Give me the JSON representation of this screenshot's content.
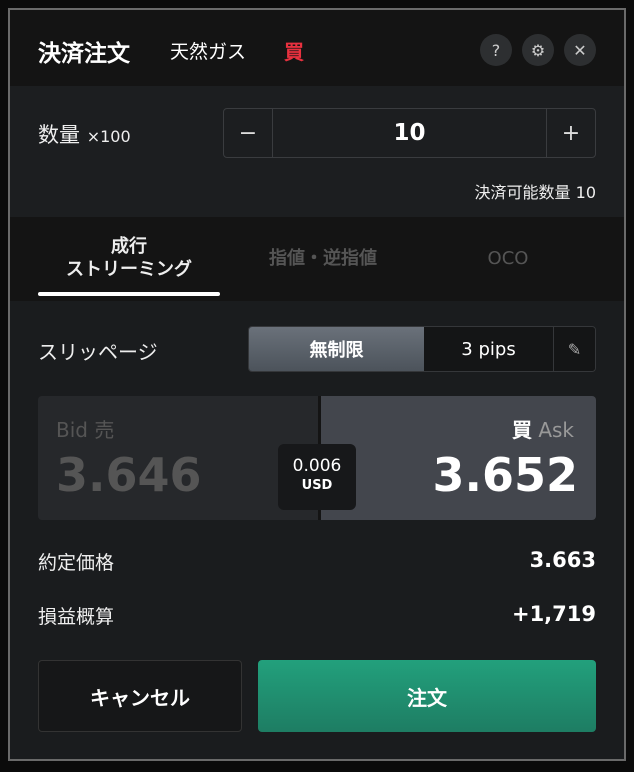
{
  "header": {
    "title": "決済注文",
    "instrument": "天然ガス",
    "side": "買",
    "side_color": "#e8313f",
    "icons": [
      "help-icon",
      "gear-icon",
      "close-icon"
    ]
  },
  "quantity": {
    "label": "数量",
    "unit": "×100",
    "value": "10",
    "minus": "−",
    "plus": "+",
    "available": "決済可能数量 10"
  },
  "tabs": [
    {
      "label_line1": "成行",
      "label_line2": "ストリーミング",
      "active": true
    },
    {
      "label": "指値・逆指値",
      "active": false
    },
    {
      "label": "OCO",
      "active": false
    }
  ],
  "slippage": {
    "label": "スリッページ",
    "options": [
      "無制限",
      "3 pips"
    ],
    "selected": "無制限"
  },
  "quote": {
    "bid_label": "Bid",
    "bid_side": "売",
    "bid": "3.646",
    "ask_side": "買",
    "ask_label": "Ask",
    "ask": "3.652",
    "spread": "0.006",
    "spread_unit": "USD"
  },
  "summary": [
    {
      "label": "約定価格",
      "value": "3.663"
    },
    {
      "label": "損益概算",
      "value": "+1,719"
    }
  ],
  "buttons": {
    "cancel": "キャンセル",
    "order": "注文",
    "order_color": "#22a07c"
  }
}
